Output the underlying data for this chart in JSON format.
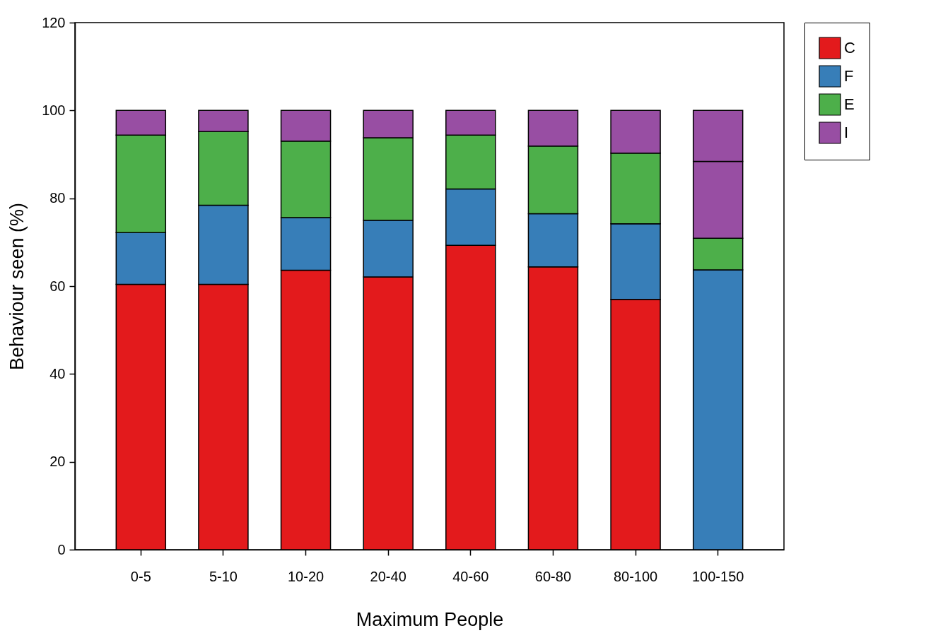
{
  "chart_data": {
    "type": "bar",
    "stacked": true,
    "xlabel": "Maximum People",
    "ylabel": "Behaviour seen (%)",
    "categories": [
      "0-5",
      "5-10",
      "10-20",
      "20-40",
      "40-60",
      "60-80",
      "80-100",
      "100-150"
    ],
    "series": [
      {
        "name": "C",
        "color": "#e31a1c",
        "values": [
          60.4,
          60.4,
          63.6,
          62.1,
          69.3,
          64.4,
          57.0,
          0
        ]
      },
      {
        "name": "F",
        "color": "#377eb8",
        "values": [
          11.8,
          18.0,
          12.0,
          12.9,
          12.8,
          12.1,
          17.2,
          63.7
        ]
      },
      {
        "name": "E",
        "color": "#4daf4a",
        "values": [
          22.2,
          16.8,
          17.4,
          18.8,
          12.3,
          15.4,
          16.1,
          7.2
        ]
      },
      {
        "name": "I",
        "color": "#984ea3",
        "values": [
          5.6,
          4.8,
          7.0,
          6.2,
          5.6,
          8.1,
          9.7,
          17.5
        ]
      },
      {
        "color": "#984ea3",
        "values": [
          null,
          null,
          null,
          null,
          null,
          null,
          null,
          11.6
        ]
      }
    ],
    "ylim": [
      0,
      120
    ],
    "yticks": [
      0,
      20,
      40,
      60,
      80,
      100,
      120
    ],
    "grid": false,
    "legend": "top right"
  }
}
